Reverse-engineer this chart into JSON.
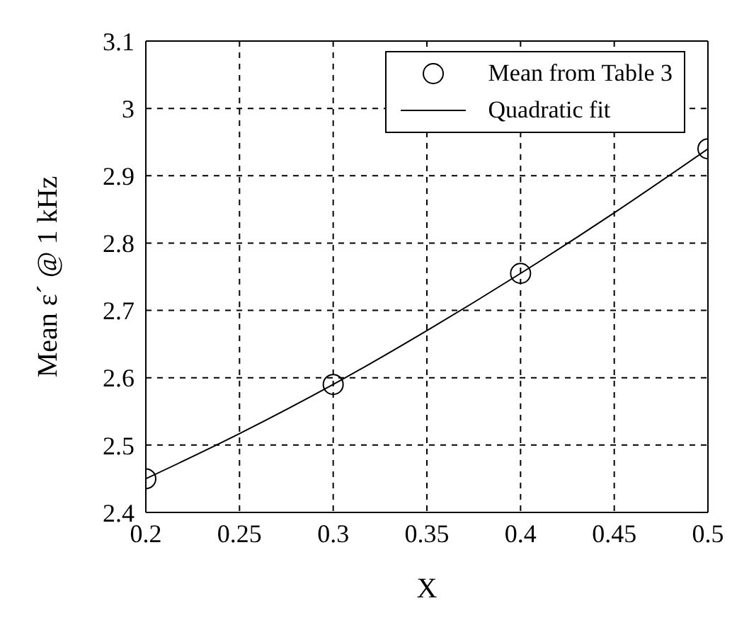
{
  "chart_data": {
    "type": "scatter",
    "xlabel": "X",
    "ylabel": "Mean ε´ @ 1 kHz",
    "xlim": [
      0.2,
      0.5
    ],
    "xticks": [
      0.2,
      0.25,
      0.3,
      0.35,
      0.4,
      0.45,
      0.5
    ],
    "ylim": [
      2.4,
      3.1
    ],
    "yticks": [
      2.4,
      2.5,
      2.6,
      2.7,
      2.8,
      2.9,
      3,
      3.1
    ],
    "grid": true,
    "legend": "top right",
    "series": [
      {
        "name": "Mean from Table 3",
        "marker": "circle",
        "color": "#000000",
        "x": [
          0.2,
          0.3,
          0.4,
          0.5
        ],
        "values": [
          2.45,
          2.59,
          2.755,
          2.94
        ]
      },
      {
        "name": "Quadratic fit",
        "type": "line",
        "line_style": "solid",
        "color": "#000000",
        "x": [
          0.2,
          0.25,
          0.3,
          0.35,
          0.4,
          0.45,
          0.5
        ],
        "values": [
          2.45,
          2.517,
          2.59,
          2.67,
          2.755,
          2.845,
          2.94
        ]
      }
    ]
  }
}
